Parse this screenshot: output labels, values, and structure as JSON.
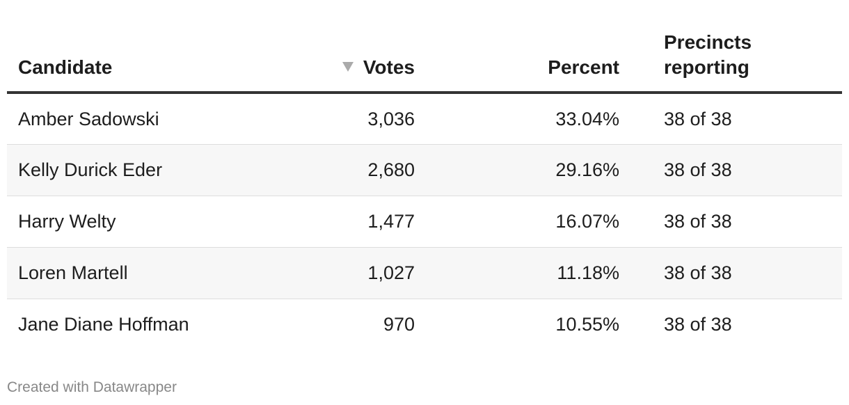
{
  "chart_data": {
    "type": "table",
    "columns": {
      "candidate": "Candidate",
      "votes": "Votes",
      "percent": "Percent",
      "precincts_line1": "Precincts",
      "precincts_line2": "reporting"
    },
    "sort": {
      "column": "votes",
      "direction": "descending"
    },
    "rows": [
      {
        "candidate": "Amber Sadowski",
        "votes": "3,036",
        "percent": "33.04%",
        "precincts": "38 of 38"
      },
      {
        "candidate": "Kelly Durick Eder",
        "votes": "2,680",
        "percent": "29.16%",
        "precincts": "38 of 38"
      },
      {
        "candidate": "Harry Welty",
        "votes": "1,477",
        "percent": "16.07%",
        "precincts": "38 of 38"
      },
      {
        "candidate": "Loren Martell",
        "votes": "1,027",
        "percent": "11.18%",
        "precincts": "38 of 38"
      },
      {
        "candidate": "Jane Diane Hoffman",
        "votes": "970",
        "percent": "10.55%",
        "precincts": "38 of 38"
      }
    ],
    "colors": {
      "header_rule": "#333333",
      "row_divider": "#dddddd",
      "alt_row": "#f7f7f7",
      "sort_icon": "#aaaaaa",
      "credit": "#888888"
    }
  },
  "footer": {
    "credit": "Created with Datawrapper"
  }
}
